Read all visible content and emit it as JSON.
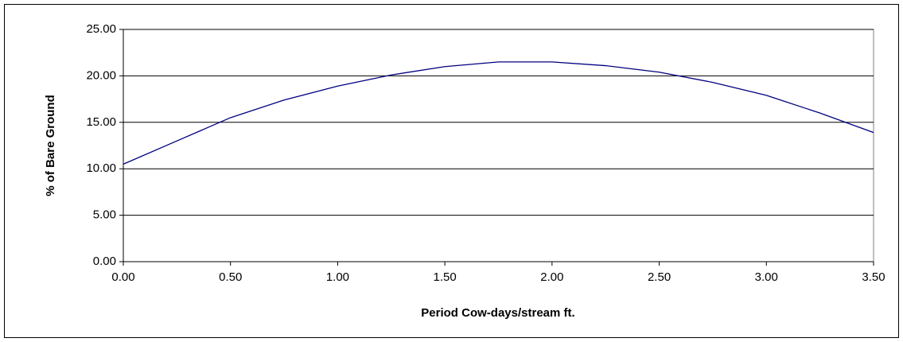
{
  "chart_data": {
    "type": "line",
    "x_label": "Period Cow-days/stream ft.",
    "y_label": "% of Bare Ground",
    "x": [
      0,
      0.25,
      0.5,
      0.75,
      1.0,
      1.25,
      1.5,
      1.75,
      2.0,
      2.25,
      2.5,
      2.75,
      3.0,
      3.25,
      3.5
    ],
    "series": [
      {
        "color": "#000080",
        "values": [
          10.5,
          13.0,
          15.5,
          17.4,
          18.9,
          20.1,
          21.0,
          21.5,
          21.5,
          21.1,
          20.4,
          19.3,
          17.9,
          16.0,
          13.9
        ]
      }
    ],
    "xlim": [
      0,
      3.5
    ],
    "xticks": [
      {
        "value": 0,
        "label": "0.00"
      },
      {
        "value": 0.5,
        "label": "0.50"
      },
      {
        "value": 1,
        "label": "1.00"
      },
      {
        "value": 1.5,
        "label": "1.50"
      },
      {
        "value": 2,
        "label": "2.00"
      },
      {
        "value": 2.5,
        "label": "2.50"
      },
      {
        "value": 3,
        "label": "3.00"
      },
      {
        "value": 3.5,
        "label": "3.50"
      }
    ],
    "ylim": [
      0,
      25
    ],
    "yticks": [
      {
        "value": 0,
        "label": "0.00"
      },
      {
        "value": 5,
        "label": "5.00"
      },
      {
        "value": 10,
        "label": "10.00"
      },
      {
        "value": 15,
        "label": "15.00"
      },
      {
        "value": 20,
        "label": "20.00"
      },
      {
        "value": 25,
        "label": "25.00"
      }
    ],
    "grid": true
  }
}
